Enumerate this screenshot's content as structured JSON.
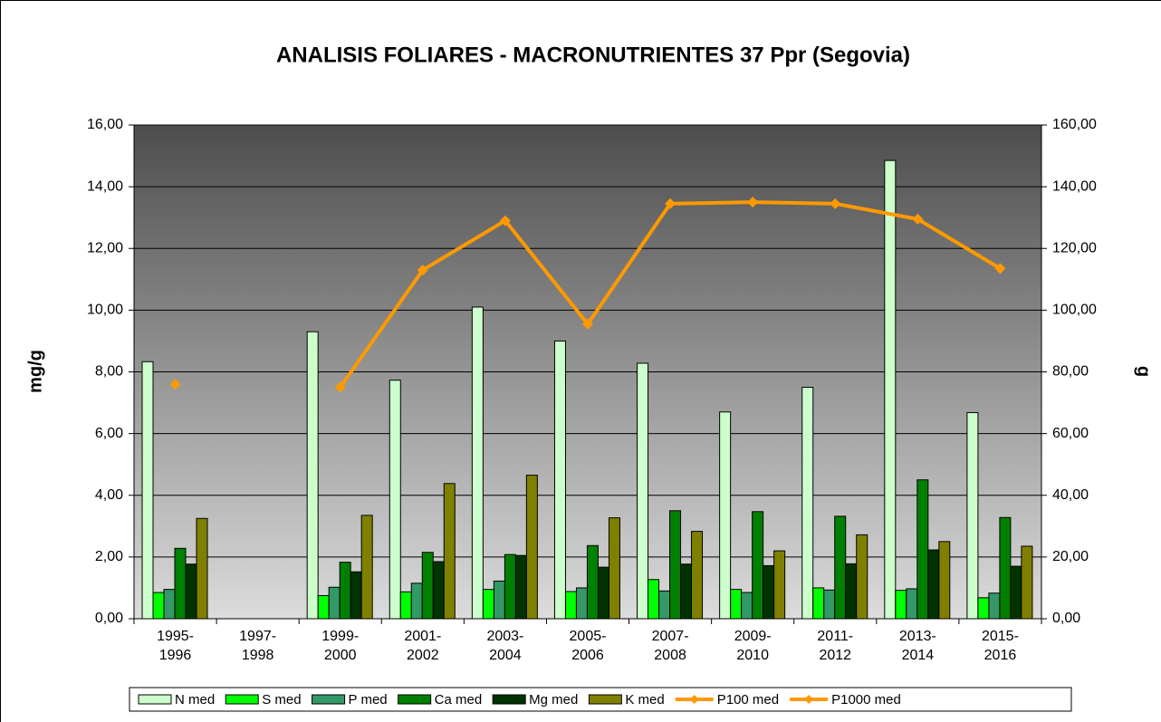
{
  "chart_data": {
    "type": "bar",
    "title": "ANALISIS FOLIARES - MACRONUTRIENTES 37 Ppr (Segovia)",
    "y_label": "mg/g",
    "y2_label": "g",
    "categories": [
      "1995-\n1996",
      "1997-\n1998",
      "1999-\n2000",
      "2001-\n2002",
      "2003-\n2004",
      "2005-\n2006",
      "2007-\n2008",
      "2009-\n2010",
      "2011-\n2012",
      "2013-\n2014",
      "2015-\n2016"
    ],
    "ylim": [
      0,
      16
    ],
    "yticks": [
      {
        "value": 0,
        "label": "0,00"
      },
      {
        "value": 2,
        "label": "2,00"
      },
      {
        "value": 4,
        "label": "4,00"
      },
      {
        "value": 6,
        "label": "6,00"
      },
      {
        "value": 8,
        "label": "8,00"
      },
      {
        "value": 10,
        "label": "10,00"
      },
      {
        "value": 12,
        "label": "12,00"
      },
      {
        "value": 14,
        "label": "14,00"
      },
      {
        "value": 16,
        "label": "16,00"
      }
    ],
    "y2lim": [
      0,
      160
    ],
    "y2ticks": [
      {
        "value": 0,
        "label": "0,00"
      },
      {
        "value": 20,
        "label": "20,00"
      },
      {
        "value": 40,
        "label": "40,00"
      },
      {
        "value": 60,
        "label": "60,00"
      },
      {
        "value": 80,
        "label": "80,00"
      },
      {
        "value": 100,
        "label": "100,00"
      },
      {
        "value": 120,
        "label": "120,00"
      },
      {
        "value": 140,
        "label": "140,00"
      },
      {
        "value": 160,
        "label": "160,00"
      }
    ],
    "grid": true,
    "legend": "bottom",
    "series": [
      {
        "name": "N med",
        "type": "bar",
        "color": "#ccffcc",
        "values": [
          8.33,
          null,
          9.3,
          7.73,
          10.1,
          9.0,
          8.28,
          6.7,
          7.5,
          14.85,
          6.68
        ]
      },
      {
        "name": "S med",
        "type": "bar",
        "color": "#00ff00",
        "values": [
          0.85,
          null,
          0.75,
          0.87,
          0.95,
          0.88,
          1.27,
          0.95,
          1.0,
          0.92,
          0.68
        ]
      },
      {
        "name": "P med",
        "type": "bar",
        "color": "#339966",
        "values": [
          0.95,
          null,
          1.02,
          1.15,
          1.22,
          1.0,
          0.9,
          0.85,
          0.93,
          0.97,
          0.83
        ]
      },
      {
        "name": "Ca med",
        "type": "bar",
        "color": "#008000",
        "values": [
          2.28,
          null,
          1.83,
          2.15,
          2.08,
          2.37,
          3.5,
          3.47,
          3.32,
          4.5,
          3.28
        ]
      },
      {
        "name": "Mg med",
        "type": "bar",
        "color": "#003300",
        "values": [
          1.77,
          null,
          1.52,
          1.85,
          2.05,
          1.67,
          1.77,
          1.72,
          1.78,
          2.23,
          1.7
        ]
      },
      {
        "name": "K med",
        "type": "bar",
        "color": "#808000",
        "values": [
          3.25,
          null,
          3.35,
          4.38,
          4.65,
          3.27,
          2.83,
          2.2,
          2.72,
          2.5,
          2.35
        ]
      },
      {
        "name": "P100 med",
        "type": "line",
        "axis": "y2",
        "color": "#ff9900",
        "values": [
          null,
          null,
          null,
          null,
          null,
          null,
          null,
          null,
          null,
          null,
          null
        ]
      },
      {
        "name": "P1000 med",
        "type": "line",
        "axis": "y2",
        "color": "#ff9900",
        "values": [
          76.0,
          null,
          75.0,
          113.0,
          129.0,
          95.5,
          134.5,
          135.0,
          134.5,
          129.5,
          113.5
        ]
      }
    ]
  }
}
